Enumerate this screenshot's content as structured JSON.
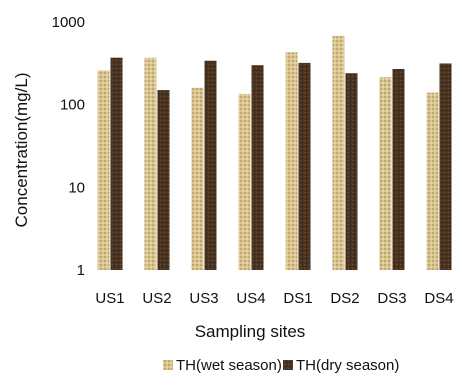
{
  "chart_data": {
    "type": "bar",
    "xlabel": "Sampling sites",
    "ylabel": "Concentration(mg/L)",
    "yscale": "log",
    "ylim": [
      1,
      1000
    ],
    "y_ticks": [
      "1",
      "10",
      "100",
      "1000"
    ],
    "categories": [
      "US1",
      "US2",
      "US3",
      "US4",
      "DS1",
      "DS2",
      "DS3",
      "DS4"
    ],
    "series": [
      {
        "name": "TH(wet season)",
        "values": [
          260,
          370,
          160,
          135,
          430,
          680,
          215,
          140
        ],
        "color": "#d9c48e",
        "pattern": "dotted"
      },
      {
        "name": "TH(dry season)",
        "values": [
          370,
          150,
          340,
          300,
          320,
          240,
          270,
          315
        ],
        "color": "#4a3320",
        "pattern": "textured"
      }
    ],
    "grid": false,
    "legend_position": "bottom"
  }
}
